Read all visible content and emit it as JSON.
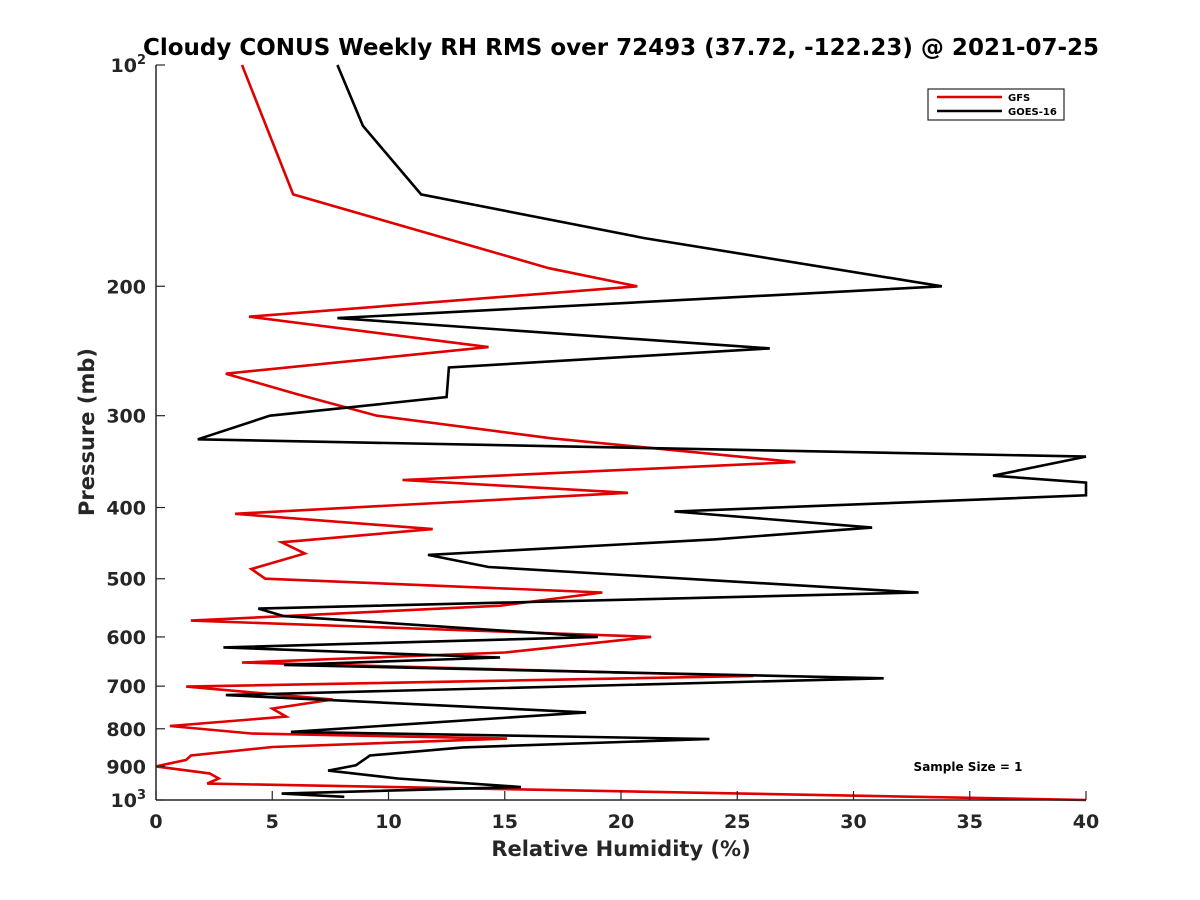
{
  "chart_data": {
    "type": "line",
    "title": "Cloudy CONUS Weekly RH RMS over 72493 (37.72, -122.23) @ 2021-07-25",
    "xlabel": "Relative Humidity (%)",
    "ylabel": "Pressure (mb)",
    "xlim": [
      0,
      40
    ],
    "ylim": [
      100,
      1000
    ],
    "y_scale": "log",
    "y_reversed": true,
    "xticks": [
      "0",
      "5",
      "10",
      "15",
      "20",
      "25",
      "30",
      "35",
      "40"
    ],
    "yticks": [
      {
        "value": 100,
        "base": "10",
        "exp": "2"
      },
      {
        "value": 200,
        "label": "200"
      },
      {
        "value": 300,
        "label": "300"
      },
      {
        "value": 400,
        "label": "400"
      },
      {
        "value": 500,
        "label": "500"
      },
      {
        "value": 600,
        "label": "600"
      },
      {
        "value": 700,
        "label": "700"
      },
      {
        "value": 800,
        "label": "800"
      },
      {
        "value": 900,
        "label": "900"
      },
      {
        "value": 1000,
        "base": "10",
        "exp": "3"
      }
    ],
    "grid": false,
    "legend_position": "top-right",
    "annotation": "Sample Size = 1",
    "series": [
      {
        "name": "GFS",
        "color": "#e00000",
        "points": [
          [
            3.7,
            100
          ],
          [
            5.9,
            150
          ],
          [
            16.9,
            189
          ],
          [
            20.7,
            200
          ],
          [
            4.0,
            220
          ],
          [
            14.3,
            242
          ],
          [
            3.0,
            263
          ],
          [
            6.0,
            280
          ],
          [
            9.5,
            300
          ],
          [
            17.0,
            322
          ],
          [
            27.5,
            347
          ],
          [
            10.6,
            367
          ],
          [
            20.3,
            382
          ],
          [
            3.4,
            408
          ],
          [
            11.9,
            428
          ],
          [
            5.4,
            446
          ],
          [
            6.4,
            462
          ],
          [
            4.1,
            485
          ],
          [
            4.7,
            500
          ],
          [
            19.2,
            522
          ],
          [
            14.8,
            544
          ],
          [
            1.5,
            570
          ],
          [
            21.3,
            600
          ],
          [
            15.0,
            630
          ],
          [
            3.7,
            650
          ],
          [
            25.7,
            678
          ],
          [
            1.3,
            701
          ],
          [
            7.6,
            730
          ],
          [
            5.0,
            751
          ],
          [
            5.6,
            770
          ],
          [
            0.6,
            793
          ],
          [
            4.1,
            812
          ],
          [
            15.1,
            825
          ],
          [
            5.0,
            847
          ],
          [
            1.5,
            870
          ],
          [
            1.3,
            882
          ],
          [
            0.0,
            900
          ],
          [
            2.3,
            920
          ],
          [
            2.7,
            935
          ],
          [
            2.2,
            950
          ],
          [
            40.0,
            1000
          ]
        ]
      },
      {
        "name": "GOES-16",
        "color": "#000000",
        "points": [
          [
            7.8,
            100
          ],
          [
            8.9,
            121
          ],
          [
            11.4,
            150
          ],
          [
            21.0,
            172
          ],
          [
            33.8,
            200
          ],
          [
            7.8,
            221
          ],
          [
            26.4,
            243
          ],
          [
            12.6,
            258
          ],
          [
            12.5,
            283
          ],
          [
            4.9,
            300
          ],
          [
            1.8,
            323
          ],
          [
            40.0,
            341
          ],
          [
            36.0,
            362
          ],
          [
            40.0,
            370
          ],
          [
            40.0,
            385
          ],
          [
            22.3,
            405
          ],
          [
            30.8,
            426
          ],
          [
            24.0,
            442
          ],
          [
            11.7,
            464
          ],
          [
            14.3,
            482
          ],
          [
            32.8,
            522
          ],
          [
            4.4,
            549
          ],
          [
            5.5,
            562
          ],
          [
            19.0,
            600
          ],
          [
            2.9,
            620
          ],
          [
            14.8,
            640
          ],
          [
            5.5,
            655
          ],
          [
            31.3,
            683
          ],
          [
            3.0,
            720
          ],
          [
            18.5,
            760
          ],
          [
            5.8,
            808
          ],
          [
            23.8,
            826
          ],
          [
            13.2,
            848
          ],
          [
            9.2,
            870
          ],
          [
            8.6,
            897
          ],
          [
            7.4,
            912
          ],
          [
            10.4,
            935
          ],
          [
            15.7,
            960
          ],
          [
            5.4,
            980
          ],
          [
            8.1,
            990
          ]
        ]
      }
    ]
  }
}
